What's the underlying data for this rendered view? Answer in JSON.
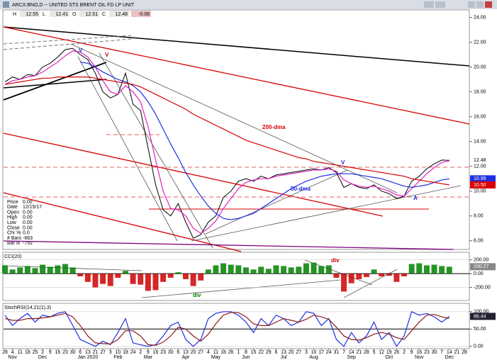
{
  "header": {
    "title": "ARCX:BNO,D -- UNITED STS BRENT OIL FD LP UNIT",
    "quote": [
      "H",
      "12.55",
      "L",
      "12.41",
      "O",
      "12.51",
      "C",
      "12.48",
      "-0.08"
    ],
    "info": [
      [
        "Price",
        "0.00"
      ],
      [
        "Date",
        "12/15/17"
      ],
      [
        "Open",
        "0.00"
      ],
      [
        "High",
        "0.00"
      ],
      [
        "Low",
        "0.00"
      ],
      [
        "Close",
        "0.00"
      ],
      [
        "Chr %",
        "0.0"
      ],
      [
        "# Bars",
        "-663"
      ],
      [
        "Bar Ix",
        "-752"
      ]
    ]
  },
  "chart_data": [
    {
      "type": "line",
      "categories": [
        "28",
        "4",
        "11",
        "18",
        "25",
        "2",
        "9",
        "16",
        "23",
        "30",
        "6",
        "13",
        "21",
        "27",
        "3",
        "10",
        "18",
        "24",
        "2",
        "9",
        "16",
        "23",
        "30",
        "6",
        "13",
        "20",
        "27",
        "4",
        "11",
        "18",
        "26",
        "1",
        "8",
        "15",
        "22",
        "29",
        "6",
        "13",
        "20",
        "27",
        "3",
        "10",
        "17",
        "24",
        "31",
        "7",
        "14",
        "21",
        "28",
        "5",
        "12",
        "19",
        "26",
        "2",
        "9",
        "16",
        "23",
        "30",
        "7",
        "14",
        "21",
        "28"
      ],
      "month_labels": [
        null,
        "Nov",
        null,
        null,
        null,
        "Dec",
        null,
        null,
        null,
        null,
        null,
        "Jan 2020",
        null,
        null,
        null,
        "Feb",
        null,
        null,
        null,
        "Mar",
        null,
        null,
        null,
        null,
        "Apr",
        null,
        null,
        null,
        "May",
        null,
        null,
        null,
        "Jun",
        null,
        null,
        null,
        null,
        "Jul",
        null,
        null,
        null,
        "Aug",
        null,
        null,
        null,
        null,
        "Sep",
        null,
        null,
        null,
        null,
        "Oct",
        null,
        null,
        null,
        "Nov",
        null,
        null,
        null,
        "Dec",
        null,
        null,
        null
      ],
      "ylim": [
        5.3,
        24.6
      ],
      "yticks": [
        {
          "value": 6,
          "label": "6.00"
        },
        {
          "value": 8,
          "label": "8.00"
        },
        {
          "value": 10,
          "label": "10.00"
        },
        {
          "value": 12,
          "label": "12.00"
        },
        {
          "value": 14,
          "label": "14.00"
        },
        {
          "value": 16,
          "label": "16.00"
        },
        {
          "value": 18,
          "label": "18.00"
        },
        {
          "value": 20,
          "label": "20.00"
        },
        {
          "value": 22,
          "label": "22.00"
        },
        {
          "value": 24,
          "label": "24.00"
        }
      ],
      "series": [
        {
          "color": "#000000",
          "values": [
            18.8,
            19.2,
            19.0,
            19.4,
            19.3,
            20.0,
            20.3,
            20.8,
            21.4,
            21.5,
            21.0,
            20.6,
            19.5,
            18.0,
            17.5,
            17.8,
            19.5,
            17.0,
            16.5,
            13.5,
            10.5,
            8.5,
            8.0,
            9.0,
            7.5,
            6.2,
            6.5,
            7.5,
            8.0,
            9.5,
            10.0,
            10.8,
            11.0,
            10.8,
            11.2,
            11.0,
            11.3,
            11.4,
            11.5,
            11.6,
            11.7,
            11.8,
            11.7,
            11.9,
            11.5,
            10.3,
            10.6,
            10.3,
            10.2,
            10.5,
            10.0,
            9.8,
            9.4,
            9.6,
            10.8,
            11.2,
            11.8,
            12.2,
            12.5,
            12.48,
            null,
            null
          ]
        },
        {
          "color": "#e020c0",
          "values": [
            18.6,
            18.9,
            19.0,
            19.2,
            19.3,
            19.6,
            20.0,
            20.4,
            20.9,
            21.3,
            21.2,
            20.8,
            20.0,
            18.9,
            18.0,
            17.8,
            18.5,
            18.0,
            17.2,
            15.2,
            12.5,
            10.0,
            8.6,
            8.5,
            8.0,
            7.0,
            6.6,
            7.0,
            7.6,
            8.6,
            9.4,
            10.2,
            10.7,
            10.9,
            11.0,
            11.0,
            11.2,
            11.3,
            11.4,
            11.5,
            11.6,
            11.7,
            11.7,
            11.8,
            11.6,
            10.9,
            10.6,
            10.4,
            10.3,
            10.4,
            10.2,
            10.0,
            9.7,
            9.6,
            10.2,
            10.8,
            11.4,
            11.9,
            12.3,
            12.45,
            null,
            null
          ]
        },
        {
          "name": "50-dma",
          "color": "#1f2fe0",
          "values": [
            null,
            null,
            null,
            null,
            null,
            null,
            null,
            null,
            null,
            null,
            20.4,
            20.3,
            20.0,
            19.6,
            19.3,
            19.0,
            18.8,
            18.5,
            18.0,
            17.2,
            16.2,
            15.0,
            13.8,
            12.7,
            11.5,
            10.5,
            9.6,
            8.8,
            8.2,
            7.8,
            7.7,
            7.8,
            8.0,
            8.2,
            8.6,
            9.0,
            9.4,
            9.8,
            10.2,
            10.5,
            10.8,
            11.0,
            11.2,
            11.3,
            11.4,
            11.4,
            11.4,
            11.3,
            11.2,
            11.1,
            11.0,
            10.8,
            10.6,
            10.4,
            10.3,
            10.4,
            10.5,
            10.7,
            10.9,
            10.99,
            null,
            null
          ]
        },
        {
          "name": "200-dma",
          "color": "#d80000",
          "end_label": "10.50",
          "values": [
            18.6,
            18.7,
            18.8,
            18.9,
            19.0,
            19.1,
            19.1,
            19.2,
            19.2,
            19.2,
            19.2,
            19.2,
            19.1,
            19.0,
            18.9,
            18.8,
            18.7,
            18.6,
            18.4,
            18.1,
            17.8,
            17.5,
            17.2,
            16.9,
            16.6,
            16.2,
            15.9,
            15.6,
            15.3,
            15.0,
            14.7,
            14.4,
            14.1,
            13.9,
            13.7,
            13.5,
            13.3,
            13.1,
            12.9,
            12.7,
            12.6,
            12.4,
            12.3,
            12.2,
            12.1,
            12.0,
            11.9,
            11.8,
            11.7,
            11.6,
            11.5,
            11.4,
            11.3,
            11.2,
            11.0,
            10.9,
            10.8,
            10.7,
            10.6,
            10.5,
            null,
            null
          ]
        }
      ],
      "annotations": [
        {
          "text": "V",
          "color": "#1f2fe0"
        },
        {
          "text": "V",
          "color": "#d80000"
        },
        {
          "text": "V",
          "color": "#1f2fe0"
        },
        {
          "text": "A",
          "color": "#1f2fe0"
        }
      ]
    },
    {
      "type": "bar",
      "title": "CCI(20)",
      "ylim": [
        -390,
        310
      ],
      "yticks": [
        {
          "value": 200,
          "label": "200.00"
        },
        {
          "value": 0,
          "label": "0.00"
        },
        {
          "value": -200,
          "label": "-200.00"
        }
      ],
      "colors": {
        "positive": "#008000",
        "negative": "#d00000"
      },
      "values": [
        120,
        60,
        90,
        110,
        80,
        130,
        100,
        120,
        140,
        90,
        -40,
        -120,
        -200,
        -150,
        -180,
        -60,
        40,
        -150,
        -160,
        -250,
        -240,
        -120,
        -60,
        20,
        -80,
        -180,
        -100,
        60,
        120,
        150,
        130,
        120,
        90,
        60,
        100,
        70,
        120,
        110,
        90,
        100,
        150,
        160,
        110,
        120,
        -60,
        -260,
        -140,
        -80,
        -50,
        60,
        -40,
        -30,
        -120,
        -40,
        140,
        150,
        120,
        130,
        110,
        100.27,
        null,
        null
      ],
      "annotations": [
        {
          "text": "div",
          "color": "#d00000"
        },
        {
          "text": "div",
          "color": "#008000"
        }
      ]
    },
    {
      "type": "line",
      "title": "StochRSI(14,21(1),3)",
      "ylim": [
        -6.5,
        124
      ],
      "yticks": [
        {
          "value": 100,
          "label": "100.00"
        },
        {
          "value": 50,
          "label": "50.00"
        },
        {
          "value": 0,
          "label": "0.00"
        }
      ],
      "series": [
        {
          "color": "#1f2fe0",
          "values": [
            90,
            60,
            80,
            95,
            70,
            90,
            85,
            95,
            100,
            60,
            20,
            10,
            0,
            15,
            5,
            40,
            80,
            10,
            5,
            0,
            5,
            30,
            60,
            70,
            20,
            0,
            20,
            80,
            95,
            100,
            100,
            90,
            70,
            40,
            80,
            60,
            90,
            80,
            60,
            70,
            100,
            95,
            60,
            80,
            20,
            0,
            40,
            10,
            30,
            70,
            20,
            40,
            0,
            30,
            100,
            90,
            95,
            85,
            70,
            86.44,
            null,
            null
          ]
        },
        {
          "color": "#8b1a1a",
          "values": [
            80,
            75,
            75,
            80,
            80,
            82,
            85,
            90,
            95,
            85,
            60,
            30,
            10,
            8,
            7,
            20,
            45,
            45,
            30,
            5,
            3,
            12,
            30,
            55,
            50,
            30,
            15,
            35,
            65,
            90,
            98,
            97,
            85,
            65,
            60,
            60,
            70,
            80,
            75,
            70,
            78,
            90,
            85,
            78,
            55,
            30,
            20,
            18,
            25,
            35,
            40,
            35,
            25,
            20,
            45,
            70,
            90,
            92,
            85,
            80,
            null,
            null
          ]
        }
      ]
    }
  ]
}
